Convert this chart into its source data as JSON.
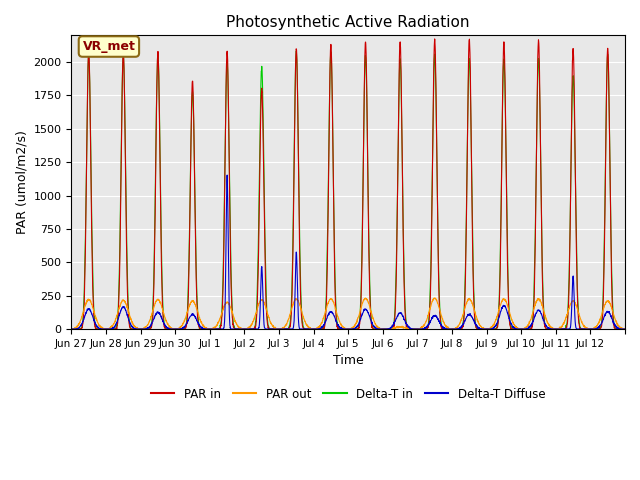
{
  "title": "Photosynthetic Active Radiation",
  "ylabel": "PAR (umol/m2/s)",
  "xlabel": "Time",
  "annotation": "VR_met",
  "ylim": [
    0,
    2200
  ],
  "background_color": "#ffffff",
  "plot_bg_color": "#e8e8e8",
  "grid_color": "#ffffff",
  "colors": {
    "par_in": "#cc0000",
    "par_out": "#ff9900",
    "delta_t_in": "#00cc00",
    "delta_t_diffuse": "#0000cc"
  },
  "x_tick_positions": [
    0,
    1,
    2,
    3,
    4,
    5,
    6,
    7,
    8,
    9,
    10,
    11,
    12,
    13,
    14,
    15,
    16
  ],
  "x_tick_labels": [
    "Jun 27",
    "Jun 28",
    "Jun 29",
    "Jun 30",
    "Jul 1",
    "Jul 2",
    "Jul 3",
    "Jul 4",
    "Jul 5",
    "Jul 6",
    "Jul 7",
    "Jul 8",
    "Jul 9",
    "Jul 10",
    "Jul 11",
    "Jul 12",
    ""
  ],
  "legend_labels": [
    "PAR in",
    "PAR out",
    "Delta-T in",
    "Delta-T Diffuse"
  ],
  "par_in_peaks": [
    2080,
    2070,
    2075,
    1860,
    2080,
    1800,
    2100,
    2130,
    2150,
    2150,
    2170,
    2170,
    2150,
    2160,
    2100,
    2100
  ],
  "par_out_peaks": [
    220,
    215,
    220,
    210,
    200,
    220,
    225,
    225,
    230,
    15,
    230,
    225,
    225,
    225,
    210,
    210
  ],
  "delta_in_peaks": [
    2050,
    2050,
    2060,
    1780,
    2000,
    1960,
    2080,
    2080,
    2050,
    2020,
    2050,
    2020,
    2020,
    2030,
    1900,
    2050
  ],
  "delta_diff_peaks": [
    150,
    165,
    125,
    110,
    1150,
    470,
    580,
    130,
    150,
    120,
    100,
    110,
    175,
    140,
    400,
    130
  ],
  "total_days": 16,
  "pts_per_day": 200
}
